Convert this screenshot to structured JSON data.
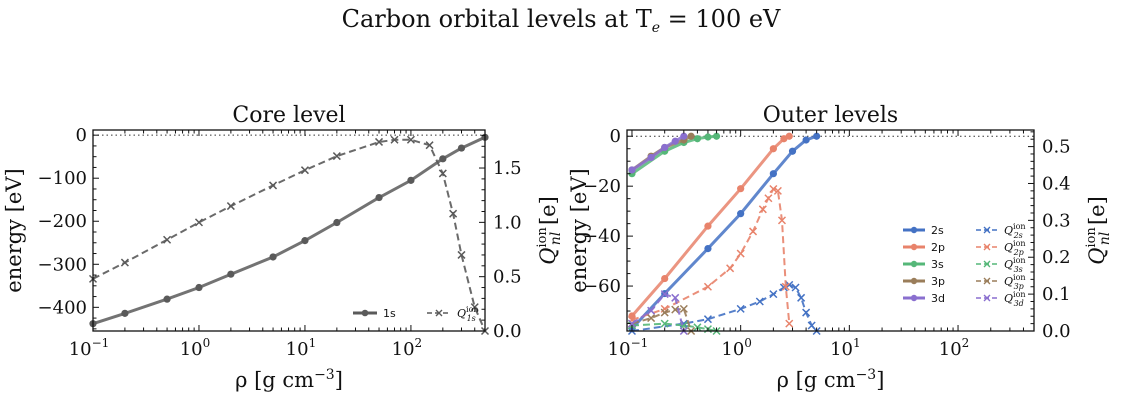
{
  "figure": {
    "suptitle": "Carbon orbital levels at T",
    "suptitle_sub": "e",
    "suptitle_tail": " = 100 eV"
  },
  "chart_data": [
    {
      "type": "line",
      "title": "Core level",
      "xlabel": "ρ [g cm",
      "xlabel_sup": "−3",
      "xlabel_tail": "]",
      "ylabel": "energy [eV]",
      "y2label": "Q",
      "y2label_sup": "ion",
      "y2label_sub": "nl",
      "y2label_tail": " [e]",
      "xscale": "log",
      "xlim": [
        0.1,
        500
      ],
      "ylim": [
        -455,
        12
      ],
      "y2lim": [
        0,
        1.85
      ],
      "xticks": [
        0.1,
        1,
        10,
        100
      ],
      "xtick_labels": [
        "10",
        "10",
        "10",
        "10"
      ],
      "xtick_exps": [
        "−1",
        "0",
        "1",
        "2"
      ],
      "yticks": [
        0,
        -100,
        -200,
        -300,
        -400
      ],
      "ytick_labels": [
        "0",
        "−100",
        "−200",
        "−300",
        "−400"
      ],
      "y2ticks": [
        0,
        0.5,
        1.0,
        1.5
      ],
      "y2tick_labels": [
        "0.0",
        "0.5",
        "1.0",
        "1.5"
      ],
      "legend_position": "lower-right",
      "reference_line": 0,
      "series": [
        {
          "name": "1s",
          "axis": "left",
          "color": "#5a5a5a",
          "marker": "o",
          "style": "solid",
          "x": [
            0.1,
            0.2,
            0.5,
            1,
            2,
            5,
            10,
            20,
            50,
            100,
            200,
            300,
            500
          ],
          "y": [
            -438,
            -414,
            -381,
            -354,
            -323,
            -283,
            -245,
            -203,
            -145,
            -105,
            -55,
            -30,
            -5
          ]
        },
        {
          "name": "Q",
          "sub": "1s",
          "sup": "ion",
          "axis": "right",
          "color": "#5a5a5a",
          "marker": "x",
          "style": "dashed",
          "x": [
            0.1,
            0.2,
            0.5,
            1,
            2,
            5,
            10,
            20,
            50,
            70,
            100,
            150,
            200,
            250,
            300,
            400,
            500
          ],
          "y": [
            0.48,
            0.63,
            0.84,
            1.0,
            1.15,
            1.34,
            1.48,
            1.61,
            1.74,
            1.76,
            1.76,
            1.71,
            1.45,
            1.08,
            0.7,
            0.22,
            0.0
          ]
        }
      ]
    },
    {
      "type": "line",
      "title": "Outer levels",
      "xlabel": "ρ [g cm",
      "xlabel_sup": "−3",
      "xlabel_tail": "]",
      "ylabel": "energy [eV]",
      "y2label": "Q",
      "y2label_sup": "ion",
      "y2label_sub": "nl",
      "y2label_tail": " [e]",
      "xscale": "log",
      "xlim": [
        0.09,
        500
      ],
      "ylim": [
        -78,
        2.5
      ],
      "y2lim": [
        0,
        0.545
      ],
      "xticks": [
        0.1,
        1,
        10,
        100
      ],
      "xtick_labels": [
        "10",
        "10",
        "10",
        "10"
      ],
      "xtick_exps": [
        "−1",
        "0",
        "1",
        "2"
      ],
      "yticks": [
        0,
        -20,
        -40,
        -60
      ],
      "ytick_labels": [
        "0",
        "−20",
        "−40",
        "−60"
      ],
      "y2ticks": [
        0,
        0.1,
        0.2,
        0.3,
        0.4,
        0.5
      ],
      "y2tick_labels": [
        "0.0",
        "0.1",
        "0.2",
        "0.3",
        "0.4",
        "0.5"
      ],
      "legend_position": "lower-right",
      "reference_line": 0,
      "series": [
        {
          "name": "2s",
          "axis": "left",
          "color": "#4472c4",
          "marker": "o",
          "style": "solid",
          "x": [
            0.1,
            0.2,
            0.5,
            1,
            2,
            3,
            4,
            5
          ],
          "y": [
            -77,
            -63,
            -45,
            -31,
            -15,
            -6,
            -1.5,
            0
          ]
        },
        {
          "name": "2p",
          "axis": "left",
          "color": "#e8836b",
          "marker": "o",
          "style": "solid",
          "x": [
            0.1,
            0.2,
            0.5,
            1,
            2,
            2.5,
            2.8
          ],
          "y": [
            -72,
            -57,
            -36,
            -21,
            -5,
            -1,
            0
          ]
        },
        {
          "name": "3s",
          "axis": "left",
          "color": "#55b778",
          "marker": "o",
          "style": "solid",
          "x": [
            0.1,
            0.2,
            0.3,
            0.4,
            0.5,
            0.6
          ],
          "y": [
            -15,
            -6,
            -2.5,
            -1,
            -0.3,
            0
          ]
        },
        {
          "name": "3p",
          "axis": "left",
          "color": "#9a7d5a",
          "marker": "o",
          "style": "solid",
          "x": [
            0.1,
            0.15,
            0.2,
            0.3,
            0.35
          ],
          "y": [
            -13.5,
            -8,
            -4.5,
            -1.5,
            0
          ]
        },
        {
          "name": "3d",
          "axis": "left",
          "color": "#8a6fcf",
          "marker": "o",
          "style": "solid",
          "x": [
            0.1,
            0.15,
            0.2,
            0.25,
            0.3
          ],
          "y": [
            -13.5,
            -8.5,
            -4.5,
            -2,
            0
          ]
        },
        {
          "name": "Q",
          "sub": "2s",
          "sup": "ion",
          "axis": "right",
          "color": "#4472c4",
          "marker": "x",
          "style": "dashed",
          "x": [
            0.1,
            0.3,
            0.5,
            1,
            1.5,
            2,
            2.5,
            2.8,
            3.2,
            3.6,
            4,
            4.5,
            5
          ],
          "y": [
            0.0,
            0.02,
            0.032,
            0.06,
            0.08,
            0.1,
            0.118,
            0.125,
            0.118,
            0.09,
            0.05,
            0.015,
            0.0
          ]
        },
        {
          "name": "Q",
          "sub": "2p",
          "sup": "ion",
          "axis": "right",
          "color": "#e8836b",
          "marker": "x",
          "style": "dashed",
          "x": [
            0.1,
            0.2,
            0.5,
            0.8,
            1,
            1.3,
            1.6,
            1.8,
            2,
            2.2,
            2.4,
            2.6,
            2.8
          ],
          "y": [
            0.03,
            0.06,
            0.12,
            0.17,
            0.21,
            0.27,
            0.33,
            0.36,
            0.385,
            0.38,
            0.3,
            0.12,
            0.02
          ]
        },
        {
          "name": "Q",
          "sub": "3s",
          "sup": "ion",
          "axis": "right",
          "color": "#55b778",
          "marker": "x",
          "style": "dashed",
          "x": [
            0.1,
            0.2,
            0.3,
            0.4,
            0.5,
            0.6
          ],
          "y": [
            0.015,
            0.02,
            0.015,
            0.01,
            0.005,
            0.0
          ]
        },
        {
          "name": "Q",
          "sub": "3p",
          "sup": "ion",
          "axis": "right",
          "color": "#9a7d5a",
          "marker": "x",
          "style": "dashed",
          "x": [
            0.1,
            0.15,
            0.2,
            0.25,
            0.3,
            0.35
          ],
          "y": [
            0.02,
            0.035,
            0.05,
            0.058,
            0.06,
            0.0
          ]
        },
        {
          "name": "Q",
          "sub": "3d",
          "sup": "ion",
          "axis": "right",
          "color": "#8a6fcf",
          "marker": "x",
          "style": "dashed",
          "x": [
            0.1,
            0.15,
            0.2,
            0.25,
            0.3
          ],
          "y": [
            0.02,
            0.055,
            0.1,
            0.09,
            0.0
          ]
        }
      ]
    }
  ]
}
